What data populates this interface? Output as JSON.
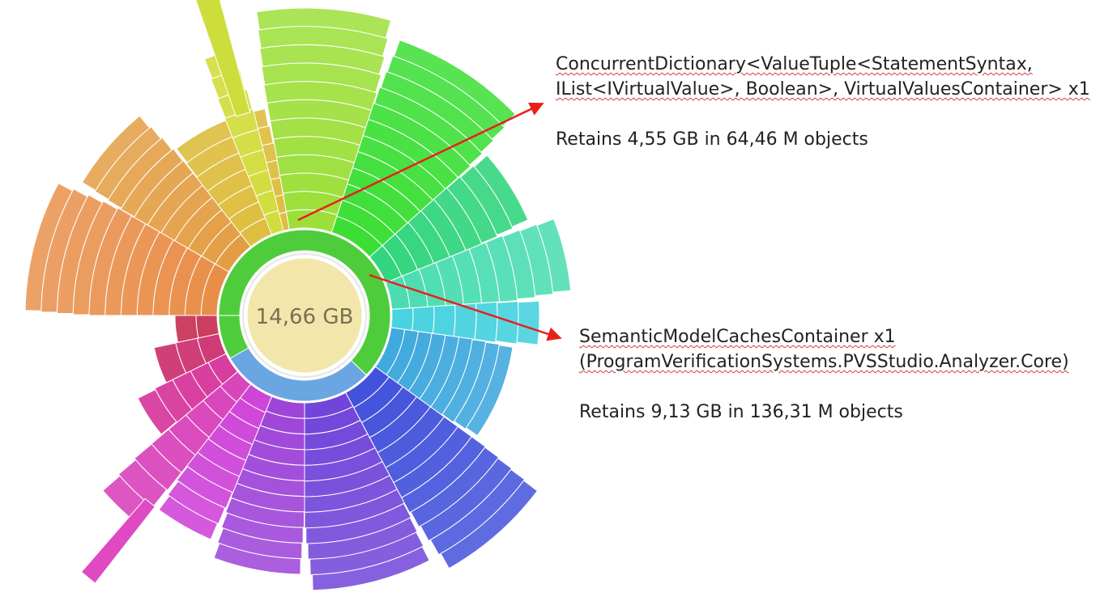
{
  "chart": {
    "center_label": "14,66 GB"
  },
  "annotations": {
    "dictionary": {
      "line1": "ConcurrentDictionary<ValueTuple<StatementSyntax,",
      "line2": "IList<IVirtualValue>, Boolean>, VirtualValuesContainer> x1",
      "stats": "Retains 4,55 GB in 64,46 M objects"
    },
    "semantic": {
      "line1": "SemanticModelCachesContainer x1",
      "line2": "(ProgramVerificationSystems.PVSStudio.Analyzer.Core)",
      "stats": "Retains 9,13 GB in 136,31 M objects"
    }
  },
  "colors": {
    "arrow": "#e8201c",
    "center_fill": "#f2e6ab",
    "inner_ring_green": "#4fcc3c",
    "inner_ring_blue": "#6aa6e2"
  }
}
